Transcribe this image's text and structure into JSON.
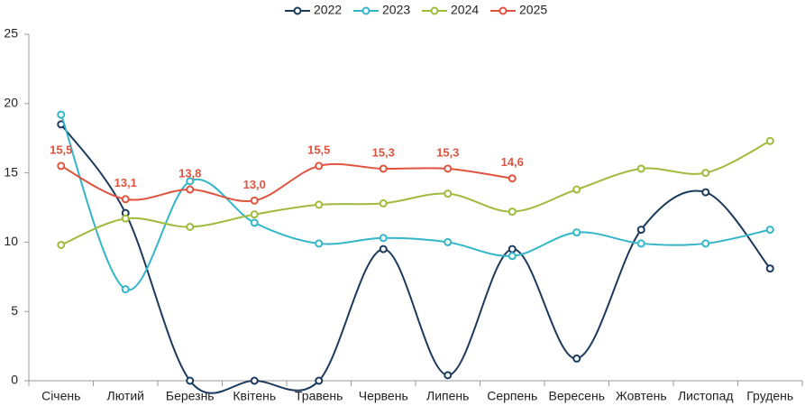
{
  "chart_data": {
    "type": "line",
    "smooth": true,
    "categories": [
      "Січень",
      "Лютий",
      "Березнь",
      "Квітень",
      "Травень",
      "Червень",
      "Липень",
      "Серпень",
      "Вересень",
      "Жовтень",
      "Листопад",
      "Грудень"
    ],
    "series": [
      {
        "name": "2022",
        "color": "#1b3a5c",
        "values": [
          18.5,
          12.1,
          0,
          0,
          0,
          9.5,
          0.4,
          9.5,
          1.6,
          10.9,
          13.6,
          8.1
        ]
      },
      {
        "name": "2023",
        "color": "#33b6c8",
        "values": [
          19.2,
          6.6,
          14.4,
          11.4,
          9.9,
          10.3,
          10.0,
          9.0,
          10.7,
          9.9,
          9.9,
          10.9
        ]
      },
      {
        "name": "2024",
        "color": "#9fbb3b",
        "values": [
          9.8,
          11.7,
          11.1,
          12.0,
          12.7,
          12.8,
          13.5,
          12.2,
          13.8,
          15.3,
          15.0,
          17.3
        ]
      },
      {
        "name": "2025",
        "color": "#e0533f",
        "values": [
          15.5,
          13.1,
          13.8,
          13.0,
          15.5,
          15.3,
          15.3,
          14.6,
          null,
          null,
          null,
          null
        ],
        "value_labels": [
          "15,5",
          "13,1",
          "13,8",
          "13,0",
          "15,5",
          "15,3",
          "15,3",
          "14,6",
          null,
          null,
          null,
          null
        ]
      }
    ],
    "ylim": [
      0,
      25
    ],
    "yticks": [
      0,
      5,
      10,
      15,
      20,
      25
    ],
    "grid": false,
    "legend": "top"
  }
}
